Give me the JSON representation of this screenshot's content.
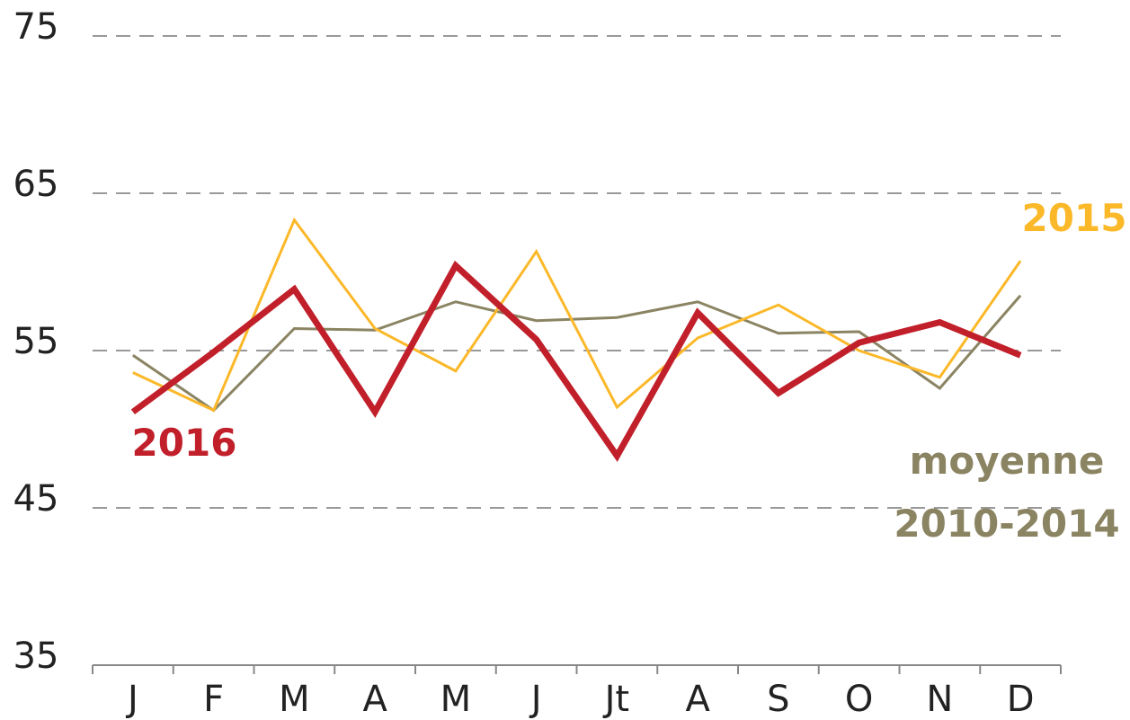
{
  "chart_data": {
    "type": "line",
    "categories": [
      "J",
      "F",
      "M",
      "A",
      "M",
      "J",
      "Jt",
      "A",
      "S",
      "O",
      "N",
      "D"
    ],
    "series": [
      {
        "name": "2016",
        "color": "#c1202b",
        "values": [
          51.1,
          54.9,
          58.9,
          51.1,
          60.4,
          55.7,
          48.3,
          57.4,
          52.3,
          55.5,
          56.8,
          54.7
        ]
      },
      {
        "name": "2015",
        "color": "#fbb829",
        "values": [
          53.6,
          51.2,
          63.3,
          56.4,
          53.7,
          61.3,
          51.4,
          55.8,
          57.9,
          55.0,
          53.3,
          60.7
        ]
      },
      {
        "name": "moyenne 2010-2014",
        "color": "#8b8463",
        "values": [
          54.7,
          51.2,
          56.4,
          56.3,
          58.1,
          56.9,
          57.1,
          58.1,
          56.1,
          56.2,
          52.6,
          58.5
        ]
      }
    ],
    "ylim": [
      35,
      75
    ],
    "yticks": [
      35,
      45,
      55,
      65,
      75
    ],
    "grid": true
  }
}
